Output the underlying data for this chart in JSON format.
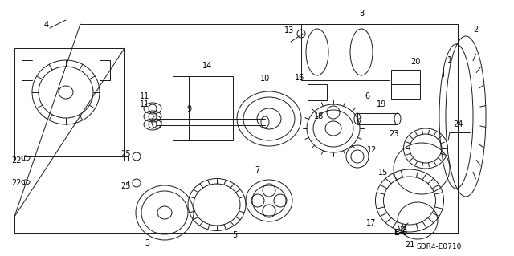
{
  "title": "",
  "bg_color": "#ffffff",
  "diagram_code": "SDR4-E0710",
  "ref_code": "E-6",
  "part_numbers": [
    1,
    2,
    3,
    4,
    5,
    6,
    7,
    8,
    9,
    10,
    11,
    12,
    13,
    14,
    15,
    16,
    17,
    18,
    19,
    20,
    21,
    22,
    23,
    24,
    25
  ],
  "fig_width": 6.4,
  "fig_height": 3.19,
  "dpi": 100
}
